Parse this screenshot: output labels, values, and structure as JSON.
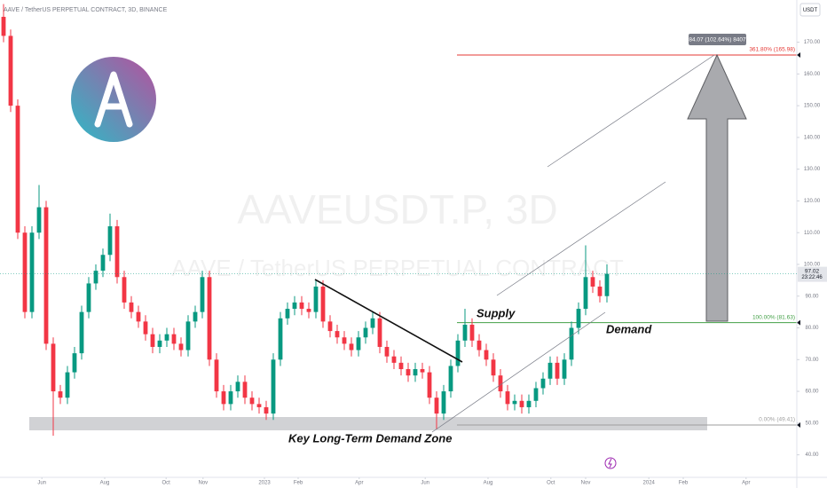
{
  "chart_data": {
    "type": "candlestick",
    "header": "AAVE / TetherUS PERPETUAL CONTRACT, 3D, BINANCE",
    "watermark": "AAVEUSDT.P, 3D",
    "watermark_sub": "AAVE / TetherUS PERPETUAL CONTRACT",
    "currency": "USDT",
    "up_color": "#089981",
    "down_color": "#f23645",
    "open": [
      178,
      172,
      150,
      110,
      85,
      110,
      118,
      75,
      60,
      58,
      66,
      72,
      85,
      94,
      98,
      103,
      112,
      96,
      88,
      85,
      82,
      78,
      74,
      76,
      78,
      75,
      73,
      82,
      85,
      96,
      70,
      60,
      56,
      60,
      63,
      58,
      56,
      55,
      53,
      70,
      83,
      86,
      88,
      86,
      85,
      93,
      82,
      79,
      77,
      75,
      73,
      77,
      80,
      83,
      74,
      71,
      69,
      67,
      65,
      67,
      66,
      58,
      53,
      60,
      68,
      76,
      81,
      76,
      73,
      70,
      65,
      60,
      56,
      57,
      55,
      57,
      61,
      64,
      69,
      64,
      70,
      80,
      86,
      96,
      93,
      90
    ],
    "high": [
      182,
      174,
      152,
      112,
      112,
      125,
      120,
      77,
      62,
      68,
      74,
      87,
      96,
      100,
      105,
      116,
      114,
      98,
      90,
      87,
      84,
      80,
      78,
      80,
      80,
      77,
      84,
      87,
      98,
      98,
      72,
      62,
      62,
      65,
      65,
      60,
      58,
      57,
      72,
      85,
      88,
      90,
      90,
      88,
      95,
      95,
      84,
      81,
      79,
      77,
      79,
      82,
      85,
      85,
      76,
      73,
      71,
      69,
      69,
      69,
      68,
      60,
      62,
      70,
      78,
      86,
      83,
      78,
      75,
      72,
      67,
      62,
      59,
      59,
      59,
      63,
      66,
      71,
      71,
      72,
      82,
      88,
      106,
      98,
      95,
      100
    ],
    "low": [
      170,
      148,
      108,
      83,
      83,
      108,
      73,
      46,
      56,
      56,
      64,
      70,
      83,
      92,
      96,
      101,
      94,
      86,
      83,
      80,
      76,
      72,
      72,
      74,
      73,
      71,
      71,
      80,
      83,
      68,
      58,
      54,
      54,
      58,
      56,
      54,
      53,
      51,
      51,
      68,
      81,
      84,
      84,
      83,
      83,
      80,
      77,
      75,
      73,
      71,
      71,
      75,
      78,
      72,
      69,
      67,
      65,
      63,
      63,
      64,
      56,
      48,
      51,
      58,
      66,
      74,
      74,
      71,
      68,
      63,
      58,
      54,
      54,
      53,
      53,
      55,
      59,
      62,
      62,
      62,
      68,
      78,
      84,
      91,
      88,
      88
    ],
    "close": [
      172,
      150,
      110,
      85,
      110,
      118,
      75,
      60,
      58,
      66,
      72,
      85,
      94,
      98,
      103,
      112,
      96,
      88,
      85,
      82,
      78,
      74,
      76,
      78,
      75,
      73,
      82,
      85,
      96,
      70,
      60,
      56,
      60,
      63,
      58,
      56,
      55,
      53,
      70,
      83,
      86,
      88,
      86,
      85,
      93,
      82,
      79,
      77,
      75,
      73,
      77,
      80,
      83,
      74,
      71,
      69,
      67,
      65,
      67,
      66,
      58,
      53,
      60,
      68,
      76,
      81,
      76,
      73,
      70,
      65,
      60,
      56,
      57,
      55,
      57,
      61,
      64,
      69,
      64,
      70,
      80,
      86,
      96,
      93,
      90,
      97.02
    ],
    "last_price": {
      "value": 97.02,
      "label": "97.02"
    },
    "countdown": "23:22:46",
    "xlim": [
      0,
      112
    ],
    "xticks": [
      {
        "value": 5.9,
        "label": "Jun"
      },
      {
        "value": 14.75,
        "label": "Aug"
      },
      {
        "value": 23.4,
        "label": "Oct"
      },
      {
        "value": 28.6,
        "label": "Nov"
      },
      {
        "value": 37.25,
        "label": "2023"
      },
      {
        "value": 42,
        "label": "Feb"
      },
      {
        "value": 50.6,
        "label": "Apr"
      },
      {
        "value": 59.9,
        "label": "Jun"
      },
      {
        "value": 68.75,
        "label": "Aug"
      },
      {
        "value": 77.6,
        "label": "Oct"
      },
      {
        "value": 82.5,
        "label": "Nov"
      },
      {
        "value": 91.4,
        "label": "2024"
      },
      {
        "value": 96.25,
        "label": "Feb"
      },
      {
        "value": 105.1,
        "label": "Apr"
      }
    ],
    "ylim": [
      32.9,
      183.3
    ],
    "yticks": [
      {
        "value": 40,
        "label": "40.00"
      },
      {
        "value": 50,
        "label": "50.00"
      },
      {
        "value": 60,
        "label": "60.00"
      },
      {
        "value": 70,
        "label": "70.00"
      },
      {
        "value": 80,
        "label": "80.00"
      },
      {
        "value": 90,
        "label": "90.00"
      },
      {
        "value": 100,
        "label": "100.00"
      },
      {
        "value": 110,
        "label": "110.00"
      },
      {
        "value": 120,
        "label": "120.00"
      },
      {
        "value": 130,
        "label": "130.00"
      },
      {
        "value": 140,
        "label": "140.00"
      },
      {
        "value": 150,
        "label": "150.00"
      },
      {
        "value": 160,
        "label": "160.00"
      },
      {
        "value": 170,
        "label": "170.00"
      }
    ],
    "grid": false,
    "fib_levels": [
      {
        "value": 165.98,
        "label": "361.80% (165.98)",
        "color": "#e53935"
      },
      {
        "value": 81.63,
        "label": "100.00% (81.63)",
        "color": "#43a047"
      },
      {
        "value": 49.41,
        "label": "0.00% (49.41)",
        "color": "#9e9e9e"
      }
    ],
    "measure_label": "84.07 (102.64%) 8407",
    "annotations": {
      "supply": "Supply",
      "demand": "Demand",
      "zone": "Key Long-Term Demand Zone"
    }
  }
}
